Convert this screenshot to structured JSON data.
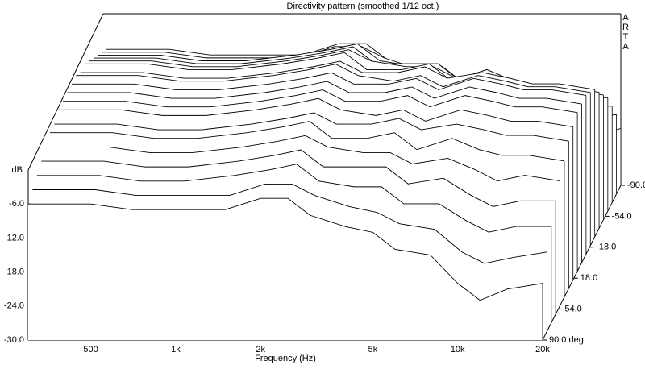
{
  "chart_data": {
    "type": "waterfall",
    "title": "Directivity pattern (smoothed 1/12 oct.)",
    "brand": "ARTA",
    "x_label": "Frequency (Hz)",
    "y_label": "dB",
    "xscale": "log",
    "xlim": [
      300,
      20000
    ],
    "xticks": [
      500,
      {
        "value": 1000,
        "label": "1k"
      },
      {
        "value": 2000,
        "label": "2k"
      },
      {
        "value": 5000,
        "label": "5k"
      },
      {
        "value": 10000,
        "label": "10k"
      },
      {
        "value": 20000,
        "label": "20k"
      }
    ],
    "ylim": [
      -30,
      0
    ],
    "yticks": [
      {
        "value": -30,
        "label": "-30.0"
      },
      {
        "value": -24,
        "label": "-24.0"
      },
      {
        "value": -18,
        "label": "-18.0"
      },
      {
        "value": -12,
        "label": "-12.0"
      },
      {
        "value": -6,
        "label": "-6.0"
      }
    ],
    "zlim": [
      -90,
      90
    ],
    "zticks": [
      {
        "value": -90,
        "label": "-90.0"
      },
      {
        "value": -54,
        "label": "-54.0"
      },
      {
        "value": -18,
        "label": "-18.0"
      },
      {
        "value": 18,
        "label": "18.0"
      },
      {
        "value": 54,
        "label": "54.0"
      },
      {
        "value": 90,
        "label": "90.0 deg"
      }
    ],
    "color": "#000000",
    "x": [
      300,
      500,
      700,
      1000,
      1500,
      2000,
      2500,
      3000,
      4000,
      5000,
      6000,
      8000,
      10000,
      12000,
      15000,
      20000
    ],
    "z": [
      -90,
      -80,
      -70,
      -60,
      -50,
      -40,
      -30,
      -20,
      -10,
      0,
      10,
      20,
      30,
      40,
      50,
      60,
      70,
      80,
      90
    ],
    "series": [
      {
        "values": [
          -6,
          -6,
          -7,
          -7,
          -7,
          -5,
          -5,
          -8,
          -10,
          -11,
          -14,
          -15,
          -20,
          -23,
          -21,
          -20
        ]
      },
      {
        "values": [
          -5,
          -5,
          -6,
          -6,
          -6,
          -4,
          -4,
          -6,
          -8,
          -9,
          -11,
          -12,
          -16,
          -18,
          -17,
          -16
        ]
      },
      {
        "values": [
          -4,
          -4,
          -5,
          -5,
          -4,
          -3,
          -2,
          -5,
          -6,
          -6,
          -9,
          -9,
          -12,
          -14,
          -13,
          -13
        ]
      },
      {
        "values": [
          -3,
          -3,
          -4,
          -4,
          -3,
          -2,
          -1,
          -4,
          -4,
          -4,
          -7,
          -6,
          -9,
          -11,
          -10,
          -10
        ]
      },
      {
        "values": [
          -2,
          -2,
          -3,
          -3,
          -2,
          -1,
          0,
          -2,
          -3,
          -3,
          -5,
          -4,
          -6,
          -8,
          -7,
          -8
        ]
      },
      {
        "values": [
          -1,
          -1,
          -2,
          -2,
          -1,
          0,
          1,
          -2,
          -2,
          -1,
          -4,
          -2,
          -4,
          -5,
          -5,
          -6
        ]
      },
      {
        "values": [
          -1,
          -1,
          -2,
          -2,
          -1,
          0,
          1,
          -1,
          -1,
          0,
          -2,
          -1,
          -2,
          -3,
          -3,
          -4
        ]
      },
      {
        "values": [
          0,
          0,
          -1,
          -1,
          0,
          1,
          2,
          0,
          -1,
          0,
          -2,
          0,
          -1,
          -2,
          -2,
          -3
        ]
      },
      {
        "values": [
          0,
          0,
          -1,
          -1,
          0,
          1,
          2,
          0,
          0,
          1,
          -1,
          1,
          0,
          -1,
          -1,
          -2
        ]
      },
      {
        "values": [
          0,
          0,
          -1,
          -1,
          0,
          1,
          2,
          0,
          0,
          1,
          -1,
          1,
          0,
          -1,
          -1,
          -2
        ]
      },
      {
        "values": [
          0,
          0,
          -1,
          -1,
          0,
          1,
          2,
          0,
          0,
          1,
          -1,
          1,
          0,
          -1,
          -1,
          -2
        ]
      },
      {
        "values": [
          0,
          0,
          -1,
          -1,
          0,
          1,
          2,
          0,
          -1,
          0,
          -2,
          0,
          -1,
          -2,
          -2,
          -3
        ]
      },
      {
        "values": [
          -1,
          -1,
          -2,
          -2,
          -1,
          0,
          1,
          -1,
          -1,
          0,
          -2,
          -1,
          -2,
          -3,
          -3,
          -4
        ]
      },
      {
        "values": [
          -1,
          -1,
          -2,
          -2,
          -1,
          0,
          1,
          -2,
          -2,
          -1,
          -4,
          -2,
          -4,
          -5,
          -5,
          -6
        ]
      },
      {
        "values": [
          -2,
          -2,
          -3,
          -3,
          -2,
          -1,
          0,
          -2,
          -3,
          -3,
          -5,
          -4,
          -6,
          -8,
          -7,
          -8
        ]
      },
      {
        "values": [
          -3,
          -3,
          -4,
          -4,
          -3,
          -2,
          -1,
          -4,
          -4,
          -4,
          -7,
          -6,
          -9,
          -11,
          -10,
          -10
        ]
      },
      {
        "values": [
          -4,
          -4,
          -5,
          -5,
          -4,
          -3,
          -2,
          -5,
          -6,
          -6,
          -9,
          -9,
          -12,
          -14,
          -13,
          -13
        ]
      },
      {
        "values": [
          -5,
          -5,
          -6,
          -6,
          -6,
          -4,
          -4,
          -6,
          -8,
          -9,
          -11,
          -12,
          -16,
          -18,
          -17,
          -16
        ]
      },
      {
        "values": [
          -6,
          -6,
          -7,
          -7,
          -7,
          -5,
          -5,
          -8,
          -10,
          -11,
          -14,
          -15,
          -20,
          -23,
          -21,
          -20
        ]
      }
    ]
  }
}
